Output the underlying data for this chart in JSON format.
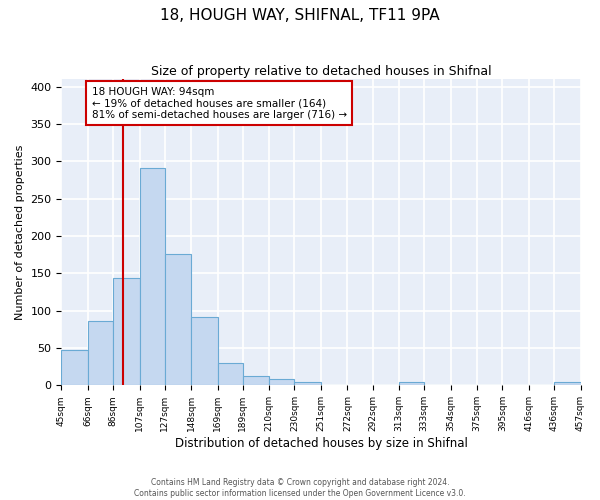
{
  "title": "18, HOUGH WAY, SHIFNAL, TF11 9PA",
  "subtitle": "Size of property relative to detached houses in Shifnal",
  "xlabel": "Distribution of detached houses by size in Shifnal",
  "ylabel": "Number of detached properties",
  "bar_color": "#c5d8f0",
  "bar_edge_color": "#6aaad4",
  "background_color": "#e8eef8",
  "grid_color": "#ffffff",
  "vline_x": 94,
  "vline_color": "#cc0000",
  "annotation_box_color": "#cc0000",
  "annotation_line1": "18 HOUGH WAY: 94sqm",
  "annotation_line2": "← 19% of detached houses are smaller (164)",
  "annotation_line3": "81% of semi-detached houses are larger (716) →",
  "bin_edges": [
    45,
    66,
    86,
    107,
    127,
    148,
    169,
    189,
    210,
    230,
    251,
    272,
    292,
    313,
    333,
    354,
    375,
    395,
    416,
    436,
    457
  ],
  "bar_heights": [
    47,
    86,
    144,
    291,
    176,
    91,
    30,
    13,
    8,
    4,
    1,
    0,
    0,
    4,
    0,
    0,
    0,
    0,
    0,
    4
  ],
  "ylim": [
    0,
    410
  ],
  "yticks": [
    0,
    50,
    100,
    150,
    200,
    250,
    300,
    350,
    400
  ],
  "footer_line1": "Contains HM Land Registry data © Crown copyright and database right 2024.",
  "footer_line2": "Contains public sector information licensed under the Open Government Licence v3.0."
}
